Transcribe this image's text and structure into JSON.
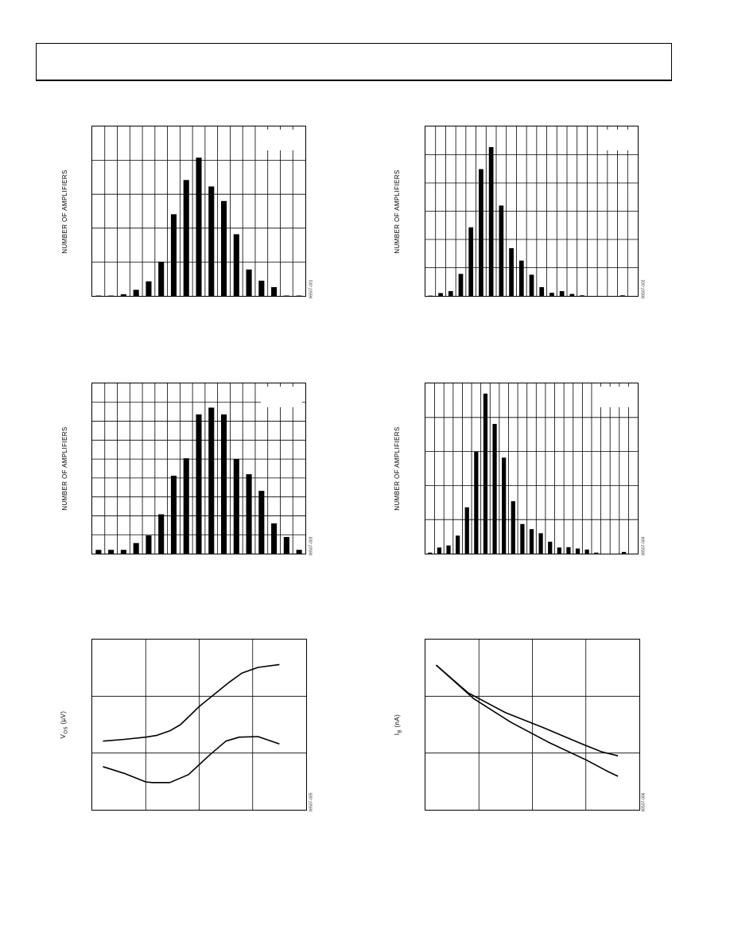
{
  "chart_data": [
    {
      "type": "bar",
      "ylabel": "NUMBER OF AMPLIFIERS",
      "figure_code": "06507-001",
      "grid_x_divisions": 17,
      "grid_y_divisions": 5,
      "values": [
        0.1,
        0.1,
        0.5,
        1.8,
        4.3,
        10.1,
        24.1,
        34.2,
        40.8,
        32.3,
        28.0,
        18.2,
        7.8,
        4.5,
        2.6,
        0.1,
        0.1
      ],
      "ylim": [
        0,
        50
      ]
    },
    {
      "type": "bar",
      "ylabel": "NUMBER OF AMPLIFIERS",
      "figure_code": "06507-002",
      "grid_x_divisions": 21,
      "grid_y_divisions": 6,
      "values": [
        0.1,
        1.0,
        1.7,
        7.8,
        24.3,
        44.9,
        52.7,
        32.0,
        16.9,
        12.5,
        7.5,
        3.1,
        1.1,
        1.7,
        0.7,
        0.2,
        0,
        0,
        0,
        0.2,
        0
      ],
      "ylim": [
        0,
        60
      ]
    },
    {
      "type": "bar",
      "ylabel": "NUMBER OF AMPLIFIERS",
      "figure_code": "06507-003",
      "grid_x_divisions": 17,
      "grid_y_divisions": 9,
      "values": [
        0.5,
        0.5,
        0.5,
        1.4,
        2.4,
        5.2,
        10.3,
        12.6,
        18.4,
        19.3,
        18.4,
        12.5,
        10.5,
        8.3,
        4.0,
        2.2,
        0.5
      ],
      "ylim": [
        0,
        22.5
      ]
    },
    {
      "type": "bar",
      "ylabel": "NUMBER OF AMPLIFIERS",
      "figure_code": "06507-004",
      "grid_x_divisions": 23,
      "grid_y_divisions": 5,
      "values": [
        0.3,
        1.8,
        2.4,
        5.3,
        13.6,
        30.0,
        47.0,
        38.1,
        28.2,
        15.4,
        8.7,
        7.2,
        6.0,
        3.5,
        1.8,
        1.9,
        1.5,
        1.2,
        0.3,
        0,
        0,
        0.5,
        0
      ],
      "ylim": [
        0,
        50
      ]
    },
    {
      "type": "line",
      "ylabel_main": "V",
      "ylabel_sub": "OS",
      "ylabel_unit": "(µV)",
      "figure_code": "06507-005",
      "grid_x_divisions": 4,
      "grid_y_divisions": 3,
      "xlim": [
        0,
        4
      ],
      "ylim": [
        0,
        3
      ],
      "series": [
        {
          "x": [
            0.2,
            0.6,
            1.0,
            1.2,
            1.45,
            1.65,
            2.0,
            2.55,
            2.8,
            3.1,
            3.5
          ],
          "y": [
            1.21,
            1.24,
            1.28,
            1.31,
            1.39,
            1.5,
            1.82,
            2.24,
            2.41,
            2.51,
            2.56
          ]
        },
        {
          "x": [
            0.2,
            0.6,
            1.0,
            1.12,
            1.45,
            1.8,
            2.2,
            2.5,
            2.75,
            3.1,
            3.5
          ],
          "y": [
            0.76,
            0.64,
            0.49,
            0.48,
            0.48,
            0.62,
            0.97,
            1.21,
            1.28,
            1.29,
            1.16
          ]
        }
      ]
    },
    {
      "type": "line",
      "ylabel_main": "I",
      "ylabel_sub": "B",
      "ylabel_unit": "(nA)",
      "figure_code": "06507-006",
      "grid_x_divisions": 4,
      "grid_y_divisions": 3,
      "xlim": [
        0,
        4
      ],
      "ylim": [
        0,
        3
      ],
      "series": [
        {
          "x": [
            0.2,
            0.8,
            1.5,
            2.2,
            2.9,
            3.3,
            3.6
          ],
          "y": [
            2.55,
            2.06,
            1.71,
            1.45,
            1.17,
            1.02,
            0.95
          ]
        },
        {
          "x": [
            0.2,
            0.9,
            1.6,
            2.3,
            3.0,
            3.4,
            3.6
          ],
          "y": [
            2.55,
            1.96,
            1.54,
            1.19,
            0.88,
            0.68,
            0.59
          ]
        }
      ]
    }
  ]
}
